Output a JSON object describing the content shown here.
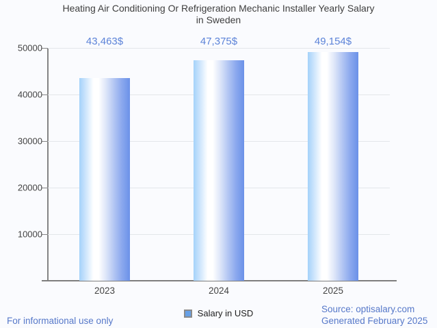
{
  "title": {
    "line1": "Heating Air Conditioning Or Refrigeration Mechanic Installer Yearly Salary",
    "line2": "in Sweden"
  },
  "legend": {
    "label": "Salary in USD"
  },
  "footer": {
    "disclaimer": "For informational use only",
    "source": "Source: optisalary.com",
    "generated": "Generated February 2025"
  },
  "colors": {
    "value_label": "#5c83d8",
    "footer_text": "#5678c9",
    "bar_left": "#a4d2fa",
    "bar_right": "#6b91e8",
    "legend_fill": "#67a0e6",
    "axis": "#848484",
    "gridline": "#e3e6ea",
    "text_dark": "#434343",
    "background": "#fafbfe"
  },
  "chart_data": {
    "type": "bar",
    "title": "Heating Air Conditioning Or Refrigeration Mechanic Installer Yearly Salary in Sweden",
    "categories": [
      "2023",
      "2024",
      "2025"
    ],
    "series": [
      {
        "name": "Salary in USD",
        "values": [
          43463,
          47375,
          49154
        ]
      }
    ],
    "value_labels": [
      "43,463$",
      "47,375$",
      "49,154$"
    ],
    "xlabel": "",
    "ylabel": "",
    "ylim": [
      0,
      50000
    ],
    "yticks": [
      0,
      10000,
      20000,
      30000,
      40000,
      50000
    ],
    "ytick_labels": [
      "",
      "10000",
      "20000",
      "30000",
      "40000",
      "50000"
    ],
    "grid": true,
    "legend_position": "bottom"
  }
}
